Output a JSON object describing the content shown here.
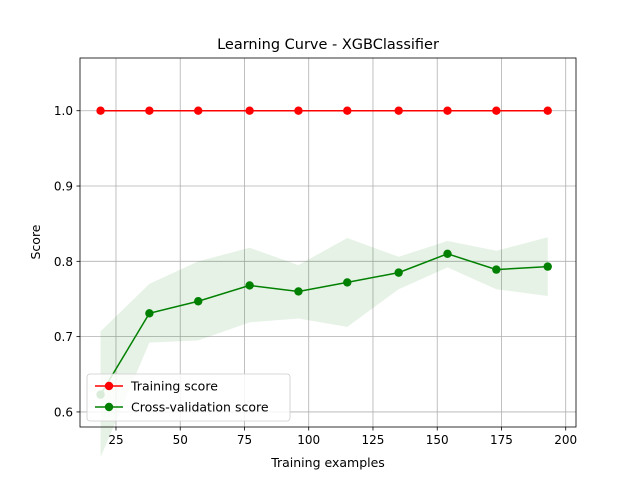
{
  "chart_data": {
    "type": "line",
    "title": "Learning Curve - XGBClassifier",
    "xlabel": "Training examples",
    "ylabel": "Score",
    "xlim": [
      11,
      204
    ],
    "ylim": [
      0.58,
      1.07
    ],
    "xticks": [
      25,
      50,
      75,
      100,
      125,
      150,
      175,
      200
    ],
    "yticks": [
      0.6,
      0.7,
      0.8,
      0.9,
      1.0
    ],
    "ytick_labels": [
      "0.6",
      "0.7",
      "0.8",
      "0.9",
      "1.0"
    ],
    "grid": true,
    "legend_position": "lower-left",
    "x": [
      19,
      38,
      57,
      77,
      96,
      115,
      135,
      154,
      173,
      193
    ],
    "series": [
      {
        "name": "Training score",
        "color": "#ff0000",
        "marker": "circle",
        "values": [
          1.0,
          1.0,
          1.0,
          1.0,
          1.0,
          1.0,
          1.0,
          1.0,
          1.0,
          1.0
        ],
        "band_lower": [
          1.0,
          1.0,
          1.0,
          1.0,
          1.0,
          1.0,
          1.0,
          1.0,
          1.0,
          1.0
        ],
        "band_upper": [
          1.0,
          1.0,
          1.0,
          1.0,
          1.0,
          1.0,
          1.0,
          1.0,
          1.0,
          1.0
        ]
      },
      {
        "name": "Cross-validation score",
        "color": "#008000",
        "marker": "circle",
        "values": [
          0.623,
          0.731,
          0.747,
          0.768,
          0.76,
          0.772,
          0.785,
          0.81,
          0.789,
          0.793
        ],
        "band_lower": [
          0.54,
          0.692,
          0.695,
          0.719,
          0.724,
          0.713,
          0.763,
          0.792,
          0.763,
          0.754
        ],
        "band_upper": [
          0.707,
          0.77,
          0.8,
          0.818,
          0.795,
          0.831,
          0.806,
          0.827,
          0.814,
          0.832
        ]
      }
    ]
  }
}
